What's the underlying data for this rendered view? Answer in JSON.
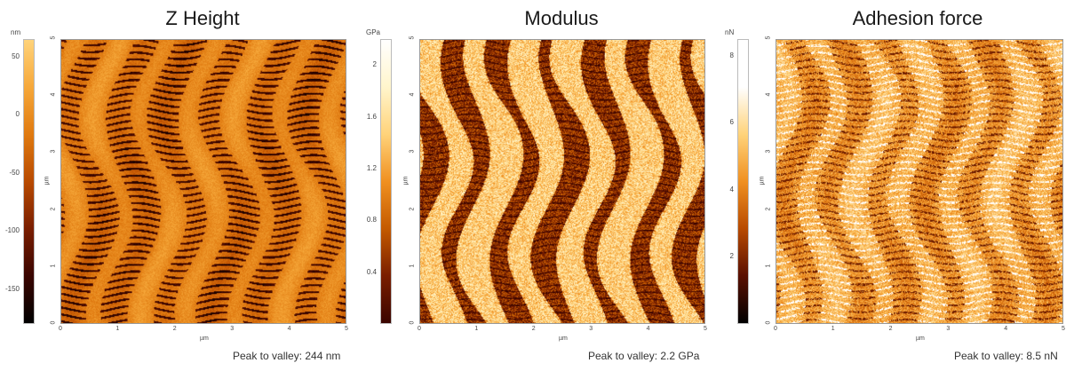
{
  "panels": [
    {
      "title": "Z Height",
      "unit": "nm",
      "colorbar_ticks": [
        "50",
        "0",
        "-50",
        "-100",
        "-150"
      ],
      "colorbar_min": -180,
      "colorbar_max": 65,
      "x_ticks": [
        "0",
        "1",
        "2",
        "3",
        "4",
        "5"
      ],
      "y_ticks": [
        "0",
        "1",
        "2",
        "3",
        "4",
        "5"
      ],
      "x_label": "µm",
      "y_label": "µm",
      "footer": "Peak to valley: 244 nm",
      "gradient": [
        "#000000",
        "#3a0500",
        "#7a1e00",
        "#b84a00",
        "#e07a10",
        "#f6a83a",
        "#ffd37a"
      ]
    },
    {
      "title": "Modulus",
      "unit": "GPa",
      "colorbar_ticks": [
        "2",
        "1.6",
        "1.2",
        "0.8",
        "0.4"
      ],
      "colorbar_min": 0,
      "colorbar_max": 2.2,
      "x_ticks": [
        "0",
        "1",
        "2",
        "3",
        "4",
        "5"
      ],
      "y_ticks": [
        "0",
        "1",
        "2",
        "3",
        "4",
        "5"
      ],
      "x_label": "µm",
      "y_label": "µm",
      "footer": "Peak to valley: 2.2 GPa",
      "gradient": [
        "#3a0500",
        "#7a1e00",
        "#c45a00",
        "#f09020",
        "#ffd37a",
        "#fff5cc",
        "#ffffff"
      ]
    },
    {
      "title": "Adhesion force",
      "unit": "nN",
      "colorbar_ticks": [
        "8",
        "6",
        "4",
        "2"
      ],
      "colorbar_min": 0,
      "colorbar_max": 8.5,
      "x_ticks": [
        "0",
        "1",
        "2",
        "3",
        "4",
        "5"
      ],
      "y_ticks": [
        "0",
        "1",
        "2",
        "3",
        "4",
        "5"
      ],
      "x_label": "µm",
      "y_label": "µm",
      "footer": "Peak to valley: 8.5 nN",
      "gradient": [
        "#000000",
        "#5a1000",
        "#b84a00",
        "#f09020",
        "#ffd37a",
        "#ffffff",
        "#ffffff"
      ]
    }
  ]
}
